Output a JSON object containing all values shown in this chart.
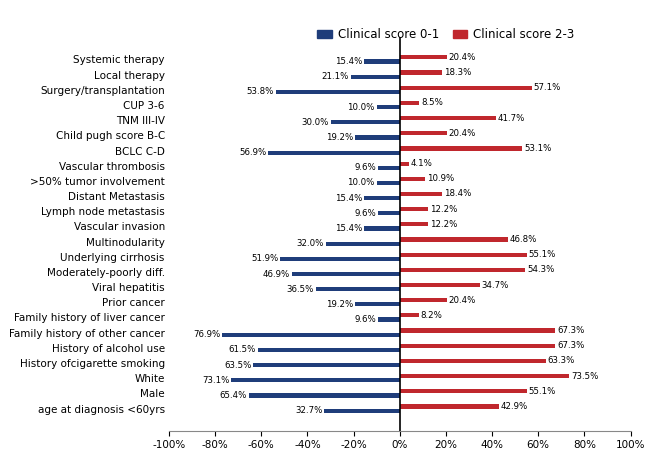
{
  "categories": [
    "Systemic therapy",
    "Local therapy",
    "Surgery/transplantation",
    "CUP 3-6",
    "TNM III-IV",
    "Child pugh score B-C",
    "BCLC C-D",
    "Vascular thrombosis",
    ">50% tumor involvement",
    "Distant Metastasis",
    "Lymph node metastasis",
    "Vascular invasion",
    "Multinodularity",
    "Underlying cirrhosis",
    "Moderately-poorly diff.",
    "Viral hepatitis",
    "Prior cancer",
    "Family history of liver cancer",
    "Family history of other cancer",
    "History of alcohol use",
    "History ofcigarette smoking",
    "White",
    "Male",
    "age at diagnosis <60yrs"
  ],
  "blue_values": [
    15.4,
    21.1,
    53.8,
    10.0,
    30.0,
    19.2,
    56.9,
    9.6,
    10.0,
    15.4,
    9.6,
    15.4,
    32.0,
    51.9,
    46.9,
    36.5,
    19.2,
    9.6,
    76.9,
    61.5,
    63.5,
    73.1,
    65.4,
    32.7
  ],
  "red_values": [
    20.4,
    18.3,
    57.1,
    8.5,
    41.7,
    20.4,
    53.1,
    4.1,
    10.9,
    18.4,
    12.2,
    12.2,
    46.8,
    55.1,
    54.3,
    34.7,
    20.4,
    8.2,
    67.3,
    67.3,
    63.3,
    73.5,
    55.1,
    42.9
  ],
  "blue_color": "#1f3d7a",
  "red_color": "#c0272d",
  "legend_blue": "Clinical score 0-1",
  "legend_red": "Clinical score 2-3",
  "xlim": [
    -100,
    100
  ],
  "xticks": [
    -100,
    -80,
    -60,
    -40,
    -20,
    0,
    20,
    40,
    60,
    80,
    100
  ],
  "xticklabels": [
    "-100%",
    "-80%",
    "-60%",
    "-40%",
    "-20%",
    "0%",
    "20%",
    "40%",
    "60%",
    "80%",
    "100%"
  ],
  "bar_height": 0.55,
  "figsize": [
    6.5,
    4.68
  ],
  "dpi": 100,
  "label_fontsize": 6.2,
  "tick_fontsize": 7.5,
  "legend_fontsize": 8.5,
  "ylabel_fontsize": 7.5
}
